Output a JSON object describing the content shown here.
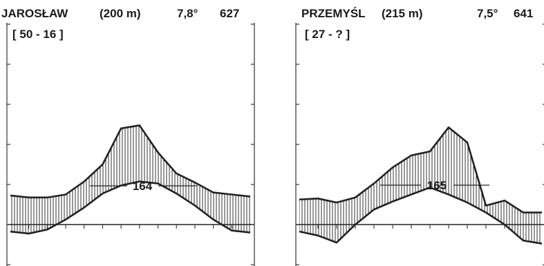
{
  "chart_data": [
    {
      "type": "line",
      "title": "JAROSŁAW",
      "elevation": "(200 m)",
      "mean_temperature": "7,8°",
      "annual_precipitation": "627",
      "years_label": "[ 50 - 16 ]",
      "annotation": "164",
      "series": [
        {
          "role": "precipitation",
          "values": [
            29,
            27,
            27,
            30,
            43,
            60,
            96,
            99,
            72,
            51,
            42,
            32,
            30,
            28
          ]
        },
        {
          "role": "temperature",
          "values": [
            -3.5,
            -4.5,
            -2.5,
            2.5,
            8.5,
            15.5,
            19.5,
            21.5,
            20.5,
            15.5,
            9.5,
            2.5,
            -3,
            -4
          ]
        }
      ]
    },
    {
      "type": "line",
      "title": "PRZEMYŚL",
      "elevation": "(215 m)",
      "mean_temperature": "7,5°",
      "annual_precipitation": "641",
      "years_label": "[ 27 - ? ]",
      "annotation": "165",
      "series": [
        {
          "role": "precipitation",
          "values": [
            25,
            26,
            22,
            27,
            41,
            57,
            69,
            73,
            97,
            82,
            19,
            24,
            12,
            12
          ]
        },
        {
          "role": "temperature",
          "values": [
            -3.5,
            -5.5,
            -9,
            0,
            7.5,
            11.5,
            15,
            18.5,
            15,
            11,
            6,
            0,
            -8,
            -9.5
          ]
        }
      ]
    }
  ]
}
